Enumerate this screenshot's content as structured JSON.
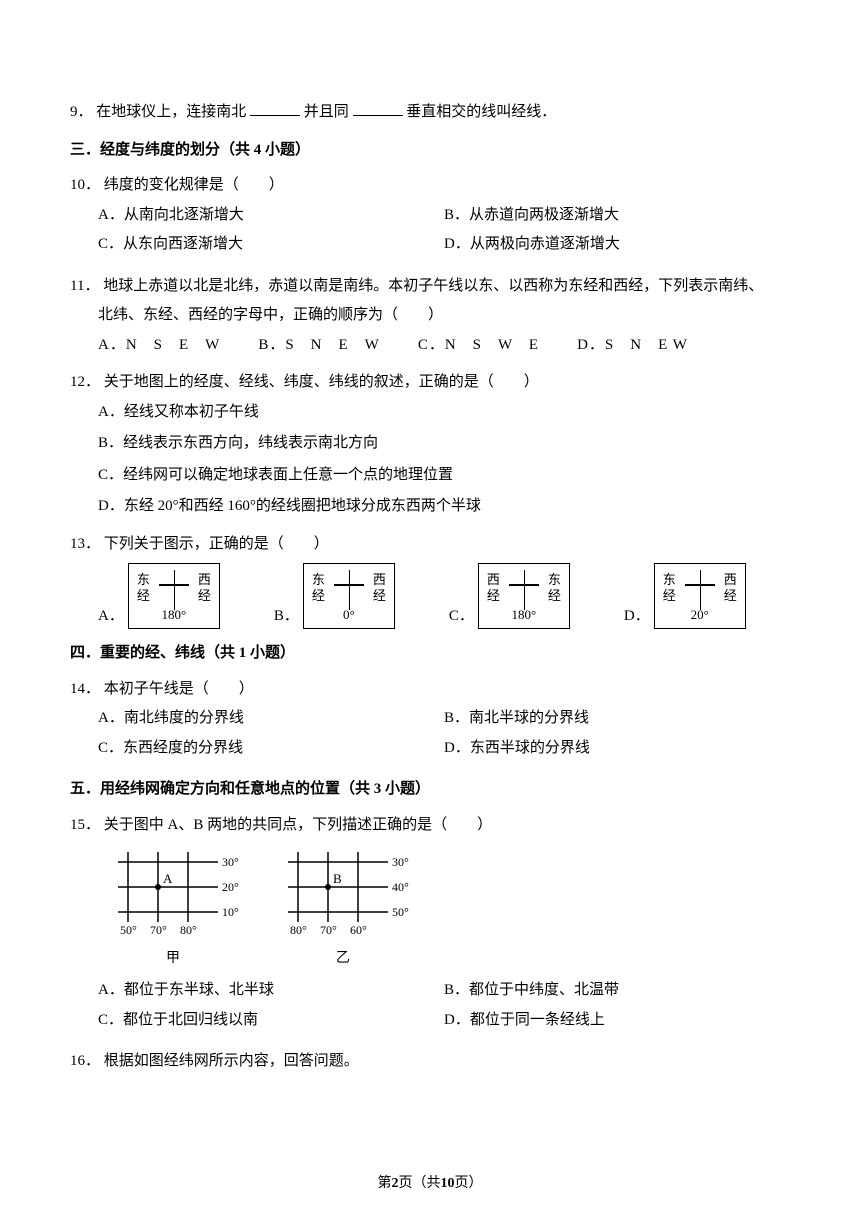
{
  "q9": {
    "num": "9．",
    "t1": "在地球仪上，连接南北",
    "t2": "并且同",
    "t3": "垂直相交的线叫经线．"
  },
  "s3": {
    "title": "三．经度与纬度的划分（共 4 小题）"
  },
  "q10": {
    "num": "10．",
    "text": "纬度的变化规律是（　　）",
    "A": "A．从南向北逐渐增大",
    "B": "B．从赤道向两极逐渐增大",
    "C": "C．从东向西逐渐增大",
    "D": "D．从两极向赤道逐渐增大"
  },
  "q11": {
    "num": "11．",
    "l1": "地球上赤道以北是北纬，赤道以南是南纬。本初子午线以东、以西称为东经和西经，下列表示南纬、",
    "l2": "北纬、东经、西经的字母中，正确的顺序为（　　）",
    "A": "A．N　S　E　W",
    "B": "B．S　N　E　W",
    "C": "C．N　S　W　E",
    "D": "D．S　N　E W"
  },
  "q12": {
    "num": "12．",
    "text": "关于地图上的经度、经线、纬度、纬线的叙述，正确的是（　　）",
    "A": "A．经线又称本初子午线",
    "B": "B．经线表示东西方向，纬线表示南北方向",
    "C": "C．经纬网可以确定地球表面上任意一个点的地理位置",
    "D": "D．东经 20°和西经 160°的经线圈把地球分成东西两个半球"
  },
  "q13": {
    "num": "13．",
    "text": "下列关于图示，正确的是（　　）",
    "boxes": [
      {
        "label": "A．",
        "left1": "东",
        "left2": "经",
        "right1": "西",
        "right2": "经",
        "deg": "180°"
      },
      {
        "label": "B．",
        "left1": "东",
        "left2": "经",
        "right1": "西",
        "right2": "经",
        "deg": "0°"
      },
      {
        "label": "C．",
        "left1": "西",
        "left2": "经",
        "right1": "东",
        "right2": "经",
        "deg": "180°"
      },
      {
        "label": "D．",
        "left1": "东",
        "left2": "经",
        "right1": "西",
        "right2": "经",
        "deg": "20°"
      }
    ]
  },
  "s4": {
    "title": "四．重要的经、纬线（共 1 小题）"
  },
  "q14": {
    "num": "14．",
    "text": "本初子午线是（　　）",
    "A": "A．南北纬度的分界线",
    "B": "B．南北半球的分界线",
    "C": "C．东西经度的分界线",
    "D": "D．东西半球的分界线"
  },
  "s5": {
    "title": "五．用经纬网确定方向和任意地点的位置（共 3 小题）"
  },
  "q15": {
    "num": "15．",
    "text": "关于图中 A、B 两地的共同点，下列描述正确的是（　　）",
    "grids": {
      "g1": {
        "caption": "甲",
        "point": "A",
        "ylabels": [
          "30°",
          "20°",
          "10°"
        ],
        "xlabels": [
          "50°",
          "70°",
          "80°"
        ]
      },
      "g2": {
        "caption": "乙",
        "point": "B",
        "ylabels": [
          "30°",
          "40°",
          "50°"
        ],
        "xlabels": [
          "80°",
          "70°",
          "60°"
        ]
      }
    },
    "A": "A．都位于东半球、北半球",
    "B": "B．都位于中纬度、北温带",
    "C": "C．都位于北回归线以南",
    "D": "D．都位于同一条经线上"
  },
  "q16": {
    "num": "16．",
    "text": "根据如图经纬网所示内容，回答问题。"
  },
  "footer": {
    "l": "第",
    "page": "2",
    "m": "页（共",
    "total": "10",
    "r": "页）"
  }
}
